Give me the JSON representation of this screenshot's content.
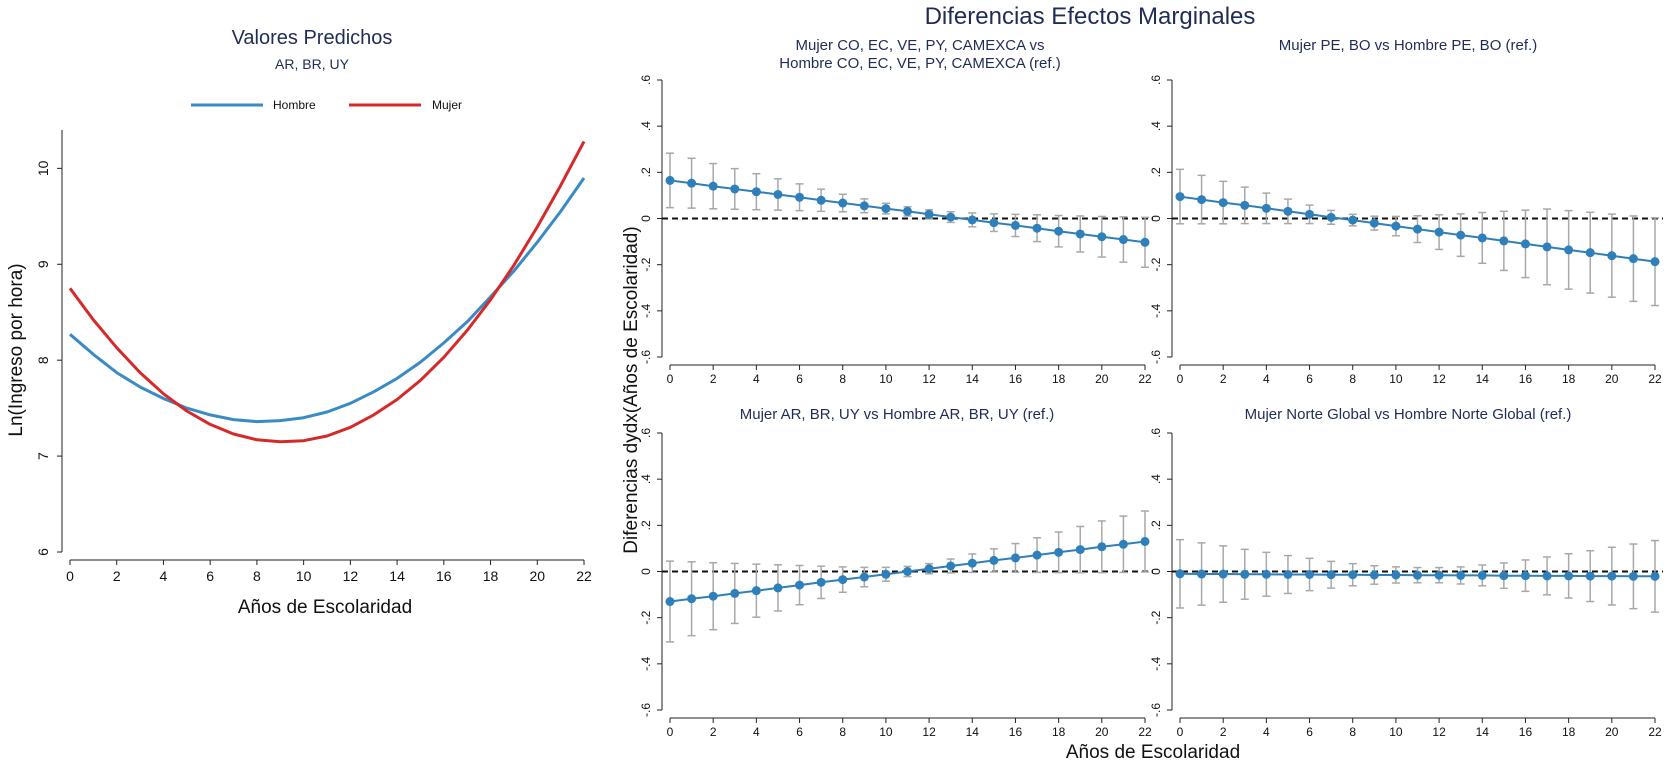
{
  "colors": {
    "hombre": "#3a8ac3",
    "mujer": "#d62a2a",
    "marker": "#2f7fba",
    "errorbar": "#a8a8a8",
    "title": "#1f2d56"
  },
  "chart_data": [
    {
      "id": "predicted",
      "type": "line",
      "title": "Valores Predichos",
      "subtitle": "AR, BR, UY",
      "xlabel": "Años de Escolaridad",
      "ylabel": "Ln(Ingreso por hora)",
      "xlim": [
        0,
        22
      ],
      "ylim": [
        6,
        10.4
      ],
      "xticks": [
        0,
        2,
        4,
        6,
        8,
        10,
        12,
        14,
        16,
        18,
        20,
        22
      ],
      "yticks": [
        6,
        7,
        8,
        9,
        10
      ],
      "legend": "top",
      "x": [
        0,
        1,
        2,
        3,
        4,
        5,
        6,
        7,
        8,
        9,
        10,
        11,
        12,
        13,
        14,
        15,
        16,
        17,
        18,
        19,
        20,
        21,
        22
      ],
      "series": [
        {
          "name": "Hombre",
          "values": [
            8.27,
            8.06,
            7.87,
            7.72,
            7.6,
            7.5,
            7.43,
            7.38,
            7.36,
            7.37,
            7.4,
            7.46,
            7.55,
            7.67,
            7.81,
            7.98,
            8.18,
            8.4,
            8.66,
            8.93,
            9.23,
            9.55,
            9.9
          ]
        },
        {
          "name": "Mujer",
          "values": [
            8.75,
            8.42,
            8.13,
            7.87,
            7.65,
            7.47,
            7.33,
            7.23,
            7.17,
            7.15,
            7.16,
            7.21,
            7.3,
            7.43,
            7.59,
            7.79,
            8.03,
            8.31,
            8.63,
            8.99,
            9.39,
            9.82,
            10.28
          ]
        }
      ]
    },
    {
      "id": "me-co",
      "type": "scatter",
      "title": "Mujer CO, EC, VE, PY, CAMEXCA vs\nHombre CO, EC, VE, PY, CAMEXCA (ref.)",
      "xlim": [
        0,
        22
      ],
      "ylim": [
        -0.6,
        0.6
      ],
      "xticks": [
        0,
        2,
        4,
        6,
        8,
        10,
        12,
        14,
        16,
        18,
        20,
        22
      ],
      "yticks": [
        -0.6,
        -0.4,
        -0.2,
        0,
        0.2,
        0.4,
        0.6
      ],
      "ytick_labels": [
        "-.6",
        "-.4",
        "-.2",
        "0",
        ".2",
        ".4",
        ".6"
      ],
      "reference_line": 0,
      "x": [
        0,
        1,
        2,
        3,
        4,
        5,
        6,
        7,
        8,
        9,
        10,
        11,
        12,
        13,
        14,
        15,
        16,
        17,
        18,
        19,
        20,
        21,
        22
      ],
      "values": [
        0.165,
        0.153,
        0.14,
        0.128,
        0.116,
        0.104,
        0.092,
        0.079,
        0.067,
        0.055,
        0.043,
        0.031,
        0.018,
        0.006,
        -0.006,
        -0.018,
        -0.03,
        -0.042,
        -0.055,
        -0.067,
        -0.079,
        -0.091,
        -0.103
      ],
      "ci_halfwidth": [
        0.118,
        0.108,
        0.098,
        0.088,
        0.078,
        0.068,
        0.058,
        0.048,
        0.038,
        0.03,
        0.023,
        0.02,
        0.02,
        0.023,
        0.03,
        0.038,
        0.048,
        0.058,
        0.068,
        0.078,
        0.088,
        0.098,
        0.108
      ]
    },
    {
      "id": "me-pe",
      "type": "scatter",
      "title": "Mujer PE, BO vs Hombre PE, BO (ref.)",
      "xlim": [
        0,
        22
      ],
      "ylim": [
        -0.6,
        0.6
      ],
      "xticks": [
        0,
        2,
        4,
        6,
        8,
        10,
        12,
        14,
        16,
        18,
        20,
        22
      ],
      "yticks": [
        -0.6,
        -0.4,
        -0.2,
        0,
        0.2,
        0.4,
        0.6
      ],
      "ytick_labels": [
        "-.6",
        "-.4",
        "-.2",
        "0",
        ".2",
        ".4",
        ".6"
      ],
      "reference_line": 0,
      "x": [
        0,
        1,
        2,
        3,
        4,
        5,
        6,
        7,
        8,
        9,
        10,
        11,
        12,
        13,
        14,
        15,
        16,
        17,
        18,
        19,
        20,
        21,
        22
      ],
      "values": [
        0.095,
        0.082,
        0.069,
        0.057,
        0.044,
        0.031,
        0.018,
        0.005,
        -0.007,
        -0.02,
        -0.033,
        -0.046,
        -0.059,
        -0.072,
        -0.084,
        -0.097,
        -0.11,
        -0.123,
        -0.136,
        -0.148,
        -0.161,
        -0.174,
        -0.187
      ],
      "ci_halfwidth": [
        0.118,
        0.105,
        0.092,
        0.079,
        0.066,
        0.053,
        0.04,
        0.03,
        0.025,
        0.03,
        0.042,
        0.058,
        0.075,
        0.092,
        0.11,
        0.128,
        0.146,
        0.164,
        0.17,
        0.175,
        0.18,
        0.185,
        0.19
      ]
    },
    {
      "id": "me-ar",
      "type": "scatter",
      "title": "Mujer AR, BR, UY vs Hombre AR, BR, UY (ref.)",
      "xlim": [
        0,
        22
      ],
      "ylim": [
        -0.6,
        0.6
      ],
      "xticks": [
        0,
        2,
        4,
        6,
        8,
        10,
        12,
        14,
        16,
        18,
        20,
        22
      ],
      "yticks": [
        -0.6,
        -0.4,
        -0.2,
        0,
        0.2,
        0.4,
        0.6
      ],
      "ytick_labels": [
        "-.6",
        "-.4",
        "-.2",
        "0",
        ".2",
        ".4",
        ".6"
      ],
      "reference_line": 0,
      "x": [
        0,
        1,
        2,
        3,
        4,
        5,
        6,
        7,
        8,
        9,
        10,
        11,
        12,
        13,
        14,
        15,
        16,
        17,
        18,
        19,
        20,
        21,
        22
      ],
      "values": [
        -0.13,
        -0.118,
        -0.107,
        -0.095,
        -0.083,
        -0.071,
        -0.059,
        -0.047,
        -0.035,
        -0.024,
        -0.012,
        0.0,
        0.012,
        0.024,
        0.036,
        0.048,
        0.059,
        0.071,
        0.083,
        0.095,
        0.107,
        0.118,
        0.13
      ],
      "ci_halfwidth": [
        0.175,
        0.16,
        0.145,
        0.13,
        0.115,
        0.1,
        0.085,
        0.07,
        0.055,
        0.042,
        0.03,
        0.022,
        0.022,
        0.03,
        0.04,
        0.05,
        0.062,
        0.075,
        0.088,
        0.1,
        0.112,
        0.122,
        0.132
      ]
    },
    {
      "id": "me-ng",
      "type": "scatter",
      "title": "Mujer Norte Global vs Hombre Norte Global (ref.)",
      "xlim": [
        0,
        22
      ],
      "ylim": [
        -0.6,
        0.6
      ],
      "xticks": [
        0,
        2,
        4,
        6,
        8,
        10,
        12,
        14,
        16,
        18,
        20,
        22
      ],
      "yticks": [
        -0.6,
        -0.4,
        -0.2,
        0,
        0.2,
        0.4,
        0.6
      ],
      "ytick_labels": [
        "-.6",
        "-.4",
        "-.2",
        "0",
        ".2",
        ".4",
        ".6"
      ],
      "reference_line": 0,
      "x": [
        0,
        1,
        2,
        3,
        4,
        5,
        6,
        7,
        8,
        9,
        10,
        11,
        12,
        13,
        14,
        15,
        16,
        17,
        18,
        19,
        20,
        21,
        22
      ],
      "values": [
        -0.01,
        -0.011,
        -0.011,
        -0.012,
        -0.012,
        -0.013,
        -0.013,
        -0.014,
        -0.014,
        -0.015,
        -0.015,
        -0.016,
        -0.016,
        -0.017,
        -0.017,
        -0.018,
        -0.018,
        -0.019,
        -0.019,
        -0.02,
        -0.02,
        -0.021,
        -0.021
      ],
      "ci_halfwidth": [
        0.148,
        0.135,
        0.122,
        0.108,
        0.095,
        0.082,
        0.07,
        0.058,
        0.048,
        0.04,
        0.035,
        0.033,
        0.033,
        0.037,
        0.045,
        0.055,
        0.068,
        0.082,
        0.096,
        0.11,
        0.125,
        0.14,
        0.155
      ]
    }
  ],
  "panel_group": {
    "title": "Diferencias Efectos Marginales",
    "ylabel": "Diferencias dydx(Años de Escolaridad)",
    "xlabel": "Años de Escolaridad"
  }
}
